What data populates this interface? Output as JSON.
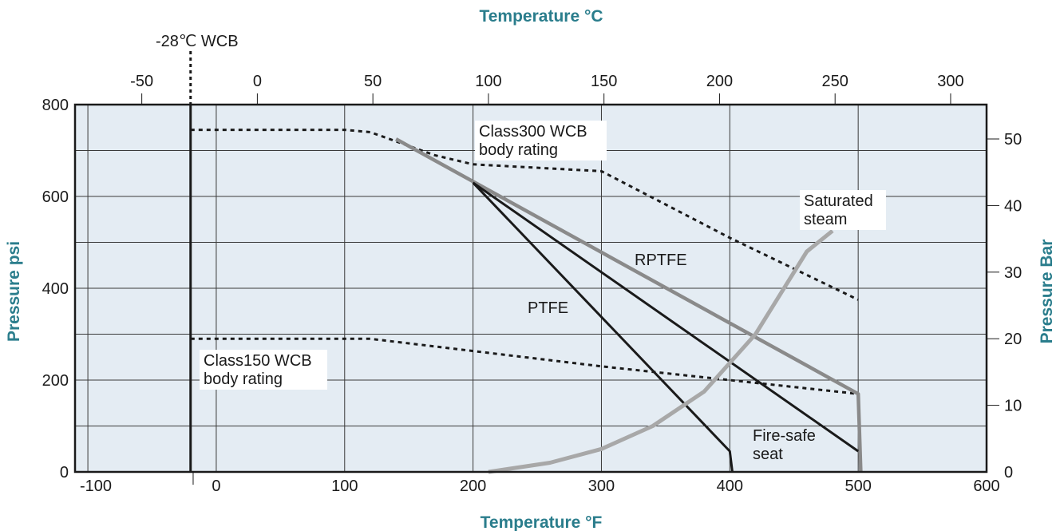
{
  "chart_data": {
    "type": "line",
    "title": "",
    "xlabel": "Temperature °F",
    "x2label": "Temperature °C",
    "ylabel": "Pressure psi",
    "y2label": "Pressure Bar",
    "xlim": [
      -110,
      600
    ],
    "ylim": [
      0,
      800
    ],
    "grid": true,
    "x_ticks": [
      "-100",
      "0",
      "100",
      "200",
      "300",
      "400",
      "500",
      "600"
    ],
    "x_tick_values": [
      -100,
      0,
      100,
      200,
      300,
      400,
      500,
      600
    ],
    "x2_ticks": [
      "-50",
      "0",
      "50",
      "100",
      "150",
      "200",
      "250",
      "300"
    ],
    "x2_tick_values": [
      -50,
      0,
      50,
      100,
      150,
      200,
      250,
      300
    ],
    "y_ticks": [
      "0",
      "200",
      "400",
      "600",
      "800"
    ],
    "y_tick_values": [
      0,
      200,
      400,
      600,
      800
    ],
    "y2_ticks": [
      "0",
      "10",
      "20",
      "30",
      "40",
      "50"
    ],
    "y2_tick_values": [
      0,
      10,
      20,
      30,
      40,
      50
    ],
    "vline": {
      "label": "-28℃ WCB",
      "x": -20
    },
    "series": [
      {
        "name": "Class300 WCB body rating",
        "style": "dotted",
        "color": "#1a1a1a",
        "points": [
          [
            -20,
            745
          ],
          [
            100,
            745
          ],
          [
            120,
            740
          ],
          [
            140,
            720
          ],
          [
            170,
            690
          ],
          [
            200,
            670
          ],
          [
            300,
            655
          ],
          [
            400,
            510
          ],
          [
            500,
            375
          ]
        ]
      },
      {
        "name": "Class150 WCB body rating",
        "style": "dotted",
        "color": "#1a1a1a",
        "points": [
          [
            -20,
            290
          ],
          [
            120,
            290
          ],
          [
            150,
            280
          ],
          [
            300,
            230
          ],
          [
            350,
            215
          ],
          [
            500,
            170
          ]
        ]
      },
      {
        "name": "RPTFE",
        "style": "solid",
        "color": "#8a8a8a",
        "points": [
          [
            140,
            725
          ],
          [
            500,
            170
          ],
          [
            502,
            0
          ]
        ]
      },
      {
        "name": "Fire-safe seat",
        "style": "solid",
        "color": "#1a1a1a",
        "points": [
          [
            200,
            630
          ],
          [
            500,
            45
          ]
        ]
      },
      {
        "name": "PTFE",
        "style": "solid",
        "color": "#1a1a1a",
        "points": [
          [
            200,
            630
          ],
          [
            400,
            45
          ],
          [
            402,
            0
          ]
        ]
      },
      {
        "name": "Saturated steam",
        "style": "solid",
        "color": "#a8a8a8",
        "points": [
          [
            212,
            0
          ],
          [
            260,
            20
          ],
          [
            300,
            50
          ],
          [
            340,
            100
          ],
          [
            380,
            175
          ],
          [
            420,
            300
          ],
          [
            440,
            390
          ],
          [
            460,
            480
          ],
          [
            480,
            525
          ]
        ]
      }
    ],
    "annotations": [
      {
        "id": "class300",
        "lines": [
          "Class300 WCB",
          "body rating"
        ]
      },
      {
        "id": "class150",
        "lines": [
          "Class150 WCB",
          "body rating"
        ]
      },
      {
        "id": "saturated",
        "lines": [
          "Saturated",
          "steam"
        ]
      },
      {
        "id": "rptfe",
        "lines": [
          "RPTFE"
        ]
      },
      {
        "id": "ptfe",
        "lines": [
          "PTFE"
        ]
      },
      {
        "id": "firesafe",
        "lines": [
          "Fire-safe",
          "seat"
        ]
      }
    ],
    "colors": {
      "plot_background": "#e4ecf3",
      "axis_title": "#2a7d8c"
    }
  }
}
